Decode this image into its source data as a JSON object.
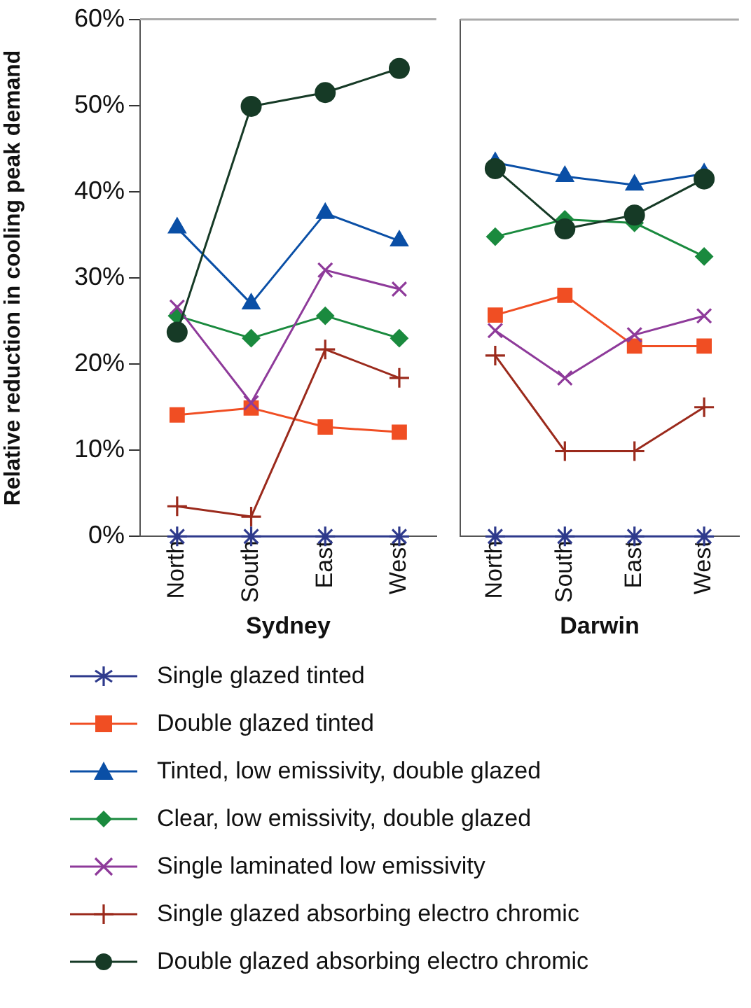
{
  "chart_data": [
    {
      "type": "line",
      "ylabel": "Relative reduction in cooling peak demand",
      "xlabel": "Sydney",
      "categories": [
        "North",
        "South",
        "East",
        "West"
      ],
      "ylim": [
        0,
        60
      ],
      "yticks": [
        {
          "value": 0,
          "label": "0%"
        },
        {
          "value": 10,
          "label": "10%"
        },
        {
          "value": 20,
          "label": "20%"
        },
        {
          "value": 30,
          "label": "30%"
        },
        {
          "value": 40,
          "label": "40%"
        },
        {
          "value": 50,
          "label": "50%"
        },
        {
          "value": 60,
          "label": "60%"
        }
      ],
      "grid": false,
      "legend": "bottom",
      "series": [
        {
          "name": "Single glazed tinted",
          "color": "#2e3a8c",
          "marker": "cross",
          "values": [
            0,
            0,
            0,
            0
          ]
        },
        {
          "name": "Double glazed tinted",
          "color": "#f04e23",
          "marker": "square",
          "values": [
            14.1,
            14.9,
            12.7,
            12.1
          ]
        },
        {
          "name": "Tinted, low emissivity, double glazed",
          "color": "#0a4fa6",
          "marker": "triangle",
          "values": [
            35.8,
            27.0,
            37.5,
            34.3
          ]
        },
        {
          "name": "Clear, low emissivity, double glazed",
          "color": "#1a8a3e",
          "marker": "diamond",
          "values": [
            25.6,
            23.0,
            25.6,
            23.0
          ]
        },
        {
          "name": "Single laminated low emissivity",
          "color": "#8e3a9a",
          "marker": "cross",
          "values": [
            26.6,
            15.5,
            30.9,
            28.7
          ]
        },
        {
          "name": "Single glazed absorbing electro chromic",
          "color": "#9b2a1c",
          "marker": "plus",
          "values": [
            3.5,
            2.3,
            21.7,
            18.4
          ]
        },
        {
          "name": "Double glazed absorbing electro chromic",
          "color": "#163a26",
          "marker": "circle",
          "values": [
            23.7,
            49.9,
            51.5,
            54.3
          ]
        }
      ]
    },
    {
      "type": "line",
      "xlabel": "Darwin",
      "categories": [
        "North",
        "South",
        "East",
        "West"
      ],
      "ylim": [
        0,
        60
      ],
      "tick_labels": "x",
      "grid": false,
      "series": [
        {
          "color": "#2e3a8c",
          "marker": "cross",
          "values": [
            0,
            0,
            0,
            0
          ]
        },
        {
          "color": "#f04e23",
          "marker": "square",
          "values": [
            25.7,
            28.0,
            22.1,
            22.1
          ]
        },
        {
          "color": "#0a4fa6",
          "marker": "triangle",
          "values": [
            43.4,
            41.8,
            40.8,
            42.1
          ]
        },
        {
          "color": "#1a8a3e",
          "marker": "diamond",
          "values": [
            34.8,
            36.8,
            36.4,
            32.5
          ]
        },
        {
          "color": "#8e3a9a",
          "marker": "cross",
          "values": [
            23.9,
            18.4,
            23.4,
            25.6
          ]
        },
        {
          "color": "#9b2a1c",
          "marker": "plus",
          "values": [
            21.0,
            9.9,
            9.9,
            15.0
          ]
        },
        {
          "color": "#163a26",
          "marker": "circle",
          "values": [
            42.7,
            35.7,
            37.3,
            41.5
          ]
        }
      ]
    }
  ]
}
